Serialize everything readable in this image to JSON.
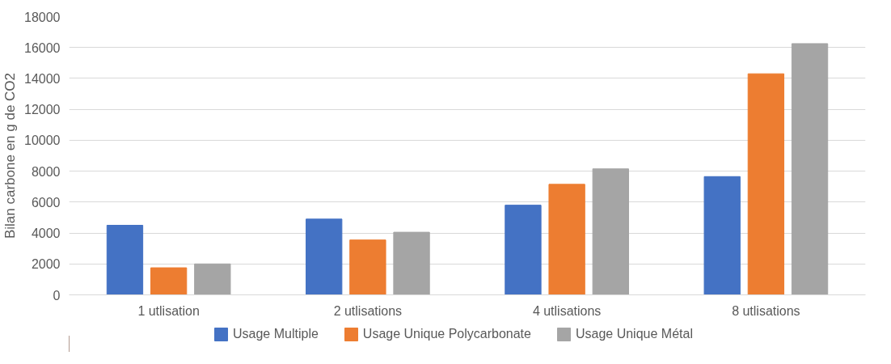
{
  "chart_data": {
    "type": "bar",
    "ylabel": "Bilan carbone en g de CO2",
    "categories": [
      "1 utlisation",
      "2 utlisations",
      "4 utlisations",
      "8 utlisations"
    ],
    "series": [
      {
        "name": "Usage Multiple",
        "color": "#4472c4",
        "values": [
          4500,
          4900,
          5800,
          7650
        ]
      },
      {
        "name": "Usage Unique Polycarbonate",
        "color": "#ed7d31",
        "values": [
          1750,
          3550,
          7150,
          14300
        ]
      },
      {
        "name": "Usage Unique Métal",
        "color": "#a5a5a5",
        "values": [
          2000,
          4050,
          8150,
          16250
        ]
      }
    ],
    "ylim": [
      0,
      18000
    ],
    "yticks": [
      0,
      2000,
      4000,
      6000,
      8000,
      10000,
      12000,
      14000,
      16000,
      18000
    ],
    "grid": "y",
    "legend": "bottom"
  }
}
